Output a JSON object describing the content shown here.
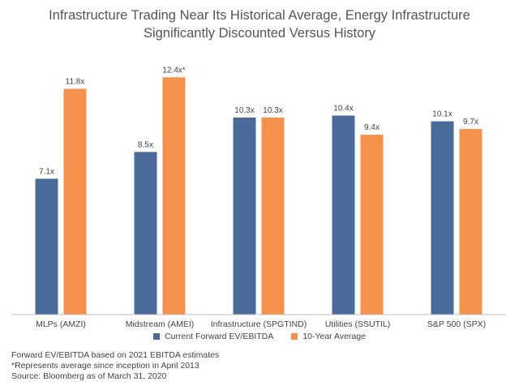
{
  "chart_data": {
    "type": "bar",
    "title_line1": "Infrastructure Trading Near Its Historical Average, Energy Infrastructure",
    "title_line2": "Significantly Discounted Versus History",
    "categories": [
      "MLPs (AMZI)",
      "Midstream (AMEI)",
      "Infrastructure (SPGTIND)",
      "Utilities (SSUTIL)",
      "S&P 500 (SPX)"
    ],
    "series": [
      {
        "name": "Current Forward EV/EBITDA",
        "color": "#4a6b9a",
        "values": [
          7.1,
          8.5,
          10.3,
          10.4,
          10.1
        ],
        "labels": [
          "7.1x",
          "8.5x",
          "10.3x",
          "10.4x",
          "10.1x"
        ]
      },
      {
        "name": "10-Year Average",
        "color": "#f5914a",
        "values": [
          11.8,
          12.4,
          10.3,
          9.4,
          9.7
        ],
        "labels": [
          "11.8x",
          "12.4x*",
          "10.3x",
          "9.4x",
          "9.7x"
        ]
      }
    ],
    "ylim": [
      0,
      13
    ],
    "grid": false,
    "legend": "bottom"
  },
  "footnotes": [
    "Forward EV/EBITDA based on 2021 EBITDA estimates",
    "*Represents average since inception in April 2013",
    "Source: Bloomberg as of March 31, 2020"
  ]
}
